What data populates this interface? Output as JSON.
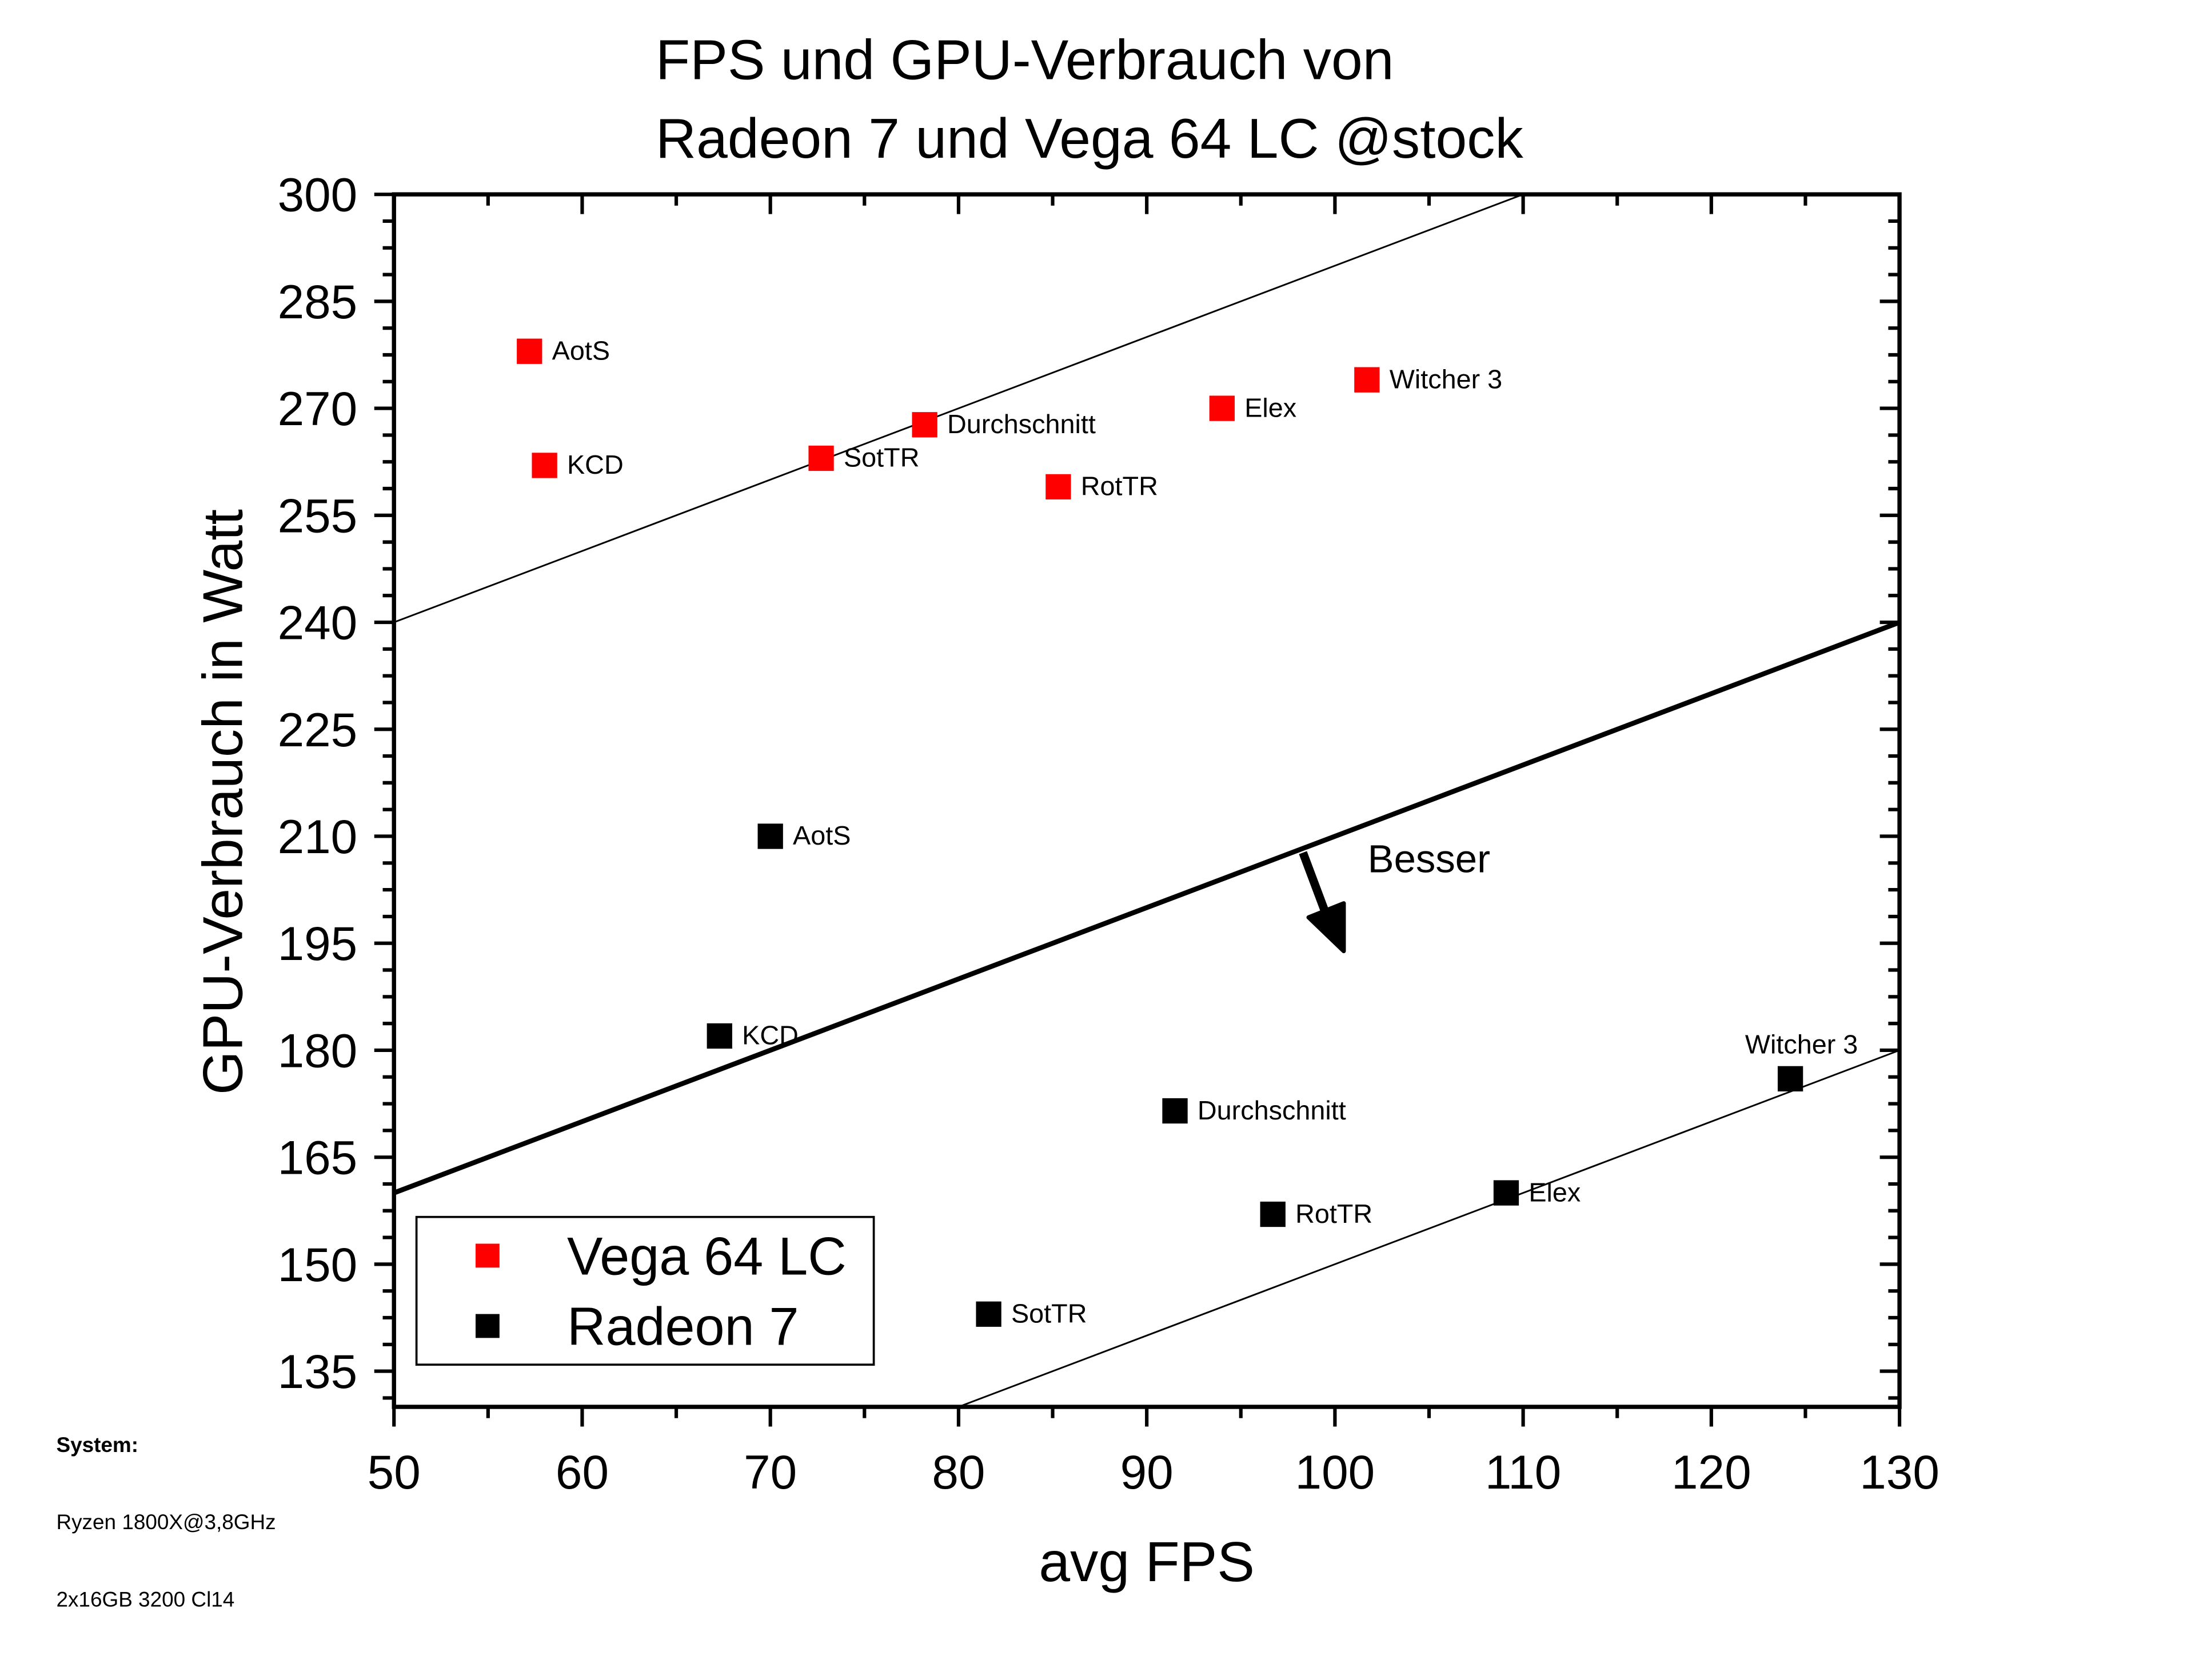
{
  "chart_data": {
    "type": "scatter",
    "title_line1": "FPS und GPU-Verbrauch von",
    "title_line2": "Radeon 7 und Vega 64 LC @stock",
    "xlabel": "avg FPS",
    "ylabel": "GPU-Verbrauch in Watt",
    "xlim": [
      50,
      130
    ],
    "ylim": [
      130,
      300
    ],
    "xticks": [
      50,
      60,
      70,
      80,
      90,
      100,
      110,
      120,
      130
    ],
    "yticks": [
      135,
      150,
      165,
      180,
      195,
      210,
      225,
      240,
      255,
      270,
      285,
      300
    ],
    "grid": false,
    "legend_position": "bottom-left",
    "series": [
      {
        "name": "Vega 64 LC",
        "color": "#ff0000",
        "points": [
          {
            "label": "AotS",
            "x": 57.2,
            "y": 278
          },
          {
            "label": "KCD",
            "x": 58.0,
            "y": 262
          },
          {
            "label": "SotTR",
            "x": 72.7,
            "y": 263
          },
          {
            "label": "Durchschnitt",
            "x": 78.2,
            "y": 267.7
          },
          {
            "label": "RotTR",
            "x": 85.3,
            "y": 259
          },
          {
            "label": "Elex",
            "x": 94.0,
            "y": 270
          },
          {
            "label": "Witcher 3",
            "x": 101.7,
            "y": 274
          }
        ]
      },
      {
        "name": "Radeon 7",
        "color": "#000000",
        "points": [
          {
            "label": "AotS",
            "x": 70.0,
            "y": 210
          },
          {
            "label": "KCD",
            "x": 67.3,
            "y": 182
          },
          {
            "label": "Durchschnitt",
            "x": 91.5,
            "y": 171.5
          },
          {
            "label": "RotTR",
            "x": 96.7,
            "y": 157
          },
          {
            "label": "SotTR",
            "x": 81.6,
            "y": 143
          },
          {
            "label": "Elex",
            "x": 109.1,
            "y": 160
          },
          {
            "label": "Witcher 3",
            "x": 124.2,
            "y": 176
          }
        ]
      }
    ],
    "reference_lines": [
      {
        "name": "upper-thin",
        "from": [
          50,
          240
        ],
        "to": [
          110,
          300
        ]
      },
      {
        "name": "middle-thick",
        "from": [
          50,
          160
        ],
        "to": [
          130,
          240
        ]
      },
      {
        "name": "lower-thin",
        "from": [
          80,
          130
        ],
        "to": [
          130,
          180
        ]
      }
    ],
    "annotation": {
      "text": "Besser"
    }
  },
  "system_info": {
    "heading": "System:",
    "cpu": "Ryzen 1800X@3,8GHz",
    "ram": "2x16GB 3200 Cl14"
  }
}
